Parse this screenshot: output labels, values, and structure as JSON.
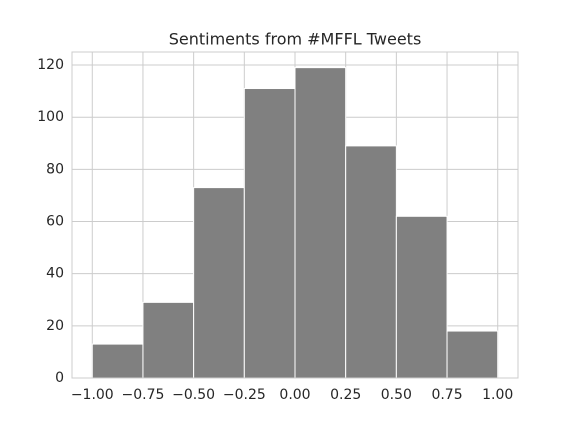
{
  "chart_data": {
    "type": "histogram",
    "title": "Sentiments from #MFFL Tweets",
    "bins": [
      -1.0,
      -0.75,
      -0.5,
      -0.25,
      0.0,
      0.25,
      0.5,
      0.75,
      1.0
    ],
    "values": [
      13,
      29,
      73,
      111,
      119,
      89,
      62,
      18
    ],
    "color": "#808080",
    "xlim": [
      -1.1,
      1.1
    ],
    "xticks": [
      {
        "value": -1.0,
        "label": "−1.00"
      },
      {
        "value": -0.75,
        "label": "−0.75"
      },
      {
        "value": -0.5,
        "label": "−0.50"
      },
      {
        "value": -0.25,
        "label": "−0.25"
      },
      {
        "value": 0.0,
        "label": "0.00"
      },
      {
        "value": 0.25,
        "label": "0.25"
      },
      {
        "value": 0.5,
        "label": "0.50"
      },
      {
        "value": 0.75,
        "label": "0.75"
      },
      {
        "value": 1.0,
        "label": "1.00"
      }
    ],
    "ylim": [
      0,
      125
    ],
    "yticks": [
      0,
      20,
      40,
      60,
      80,
      100,
      120
    ],
    "grid": true
  }
}
